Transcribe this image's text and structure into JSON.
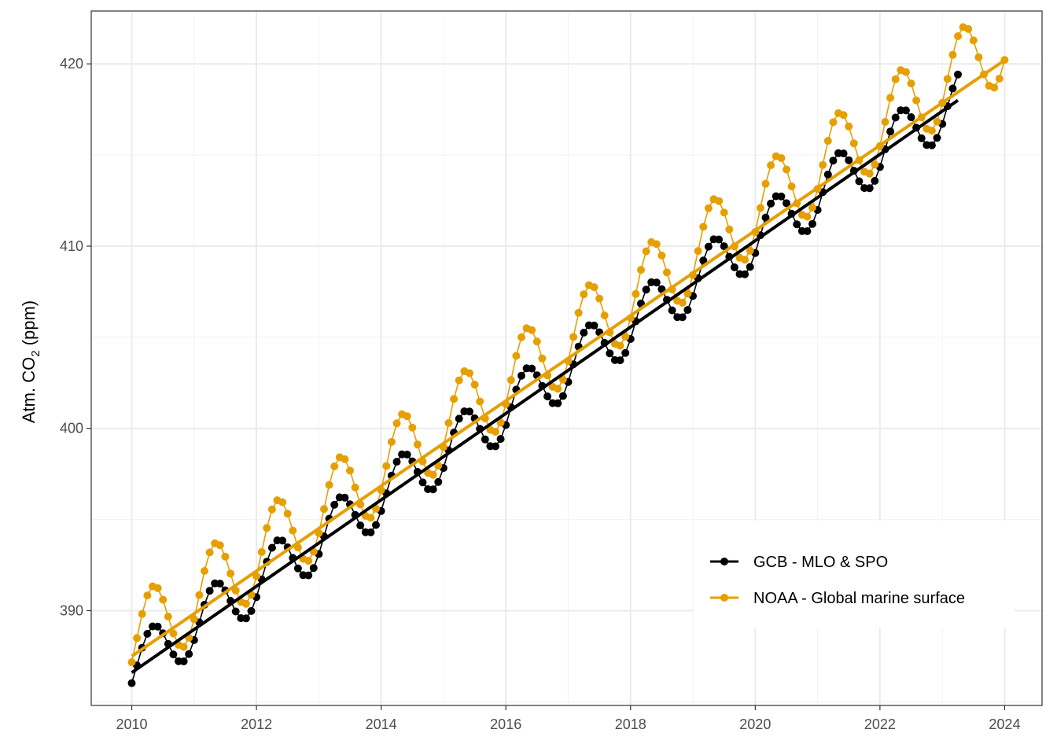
{
  "chart_data": {
    "type": "line",
    "title": "",
    "xlabel": "",
    "ylabel": "Atm. CO",
    "ylabel_subscript": "2",
    "ylabel_unit": " (ppm)",
    "xlim": [
      2009.35,
      2024.6
    ],
    "ylim": [
      384.8,
      422.9
    ],
    "x_ticks": [
      2010,
      2012,
      2014,
      2016,
      2018,
      2020,
      2022,
      2024
    ],
    "x_tick_labels": [
      "2010",
      "2012",
      "2014",
      "2016",
      "2018",
      "2020",
      "2022",
      "2024"
    ],
    "y_ticks": [
      390,
      400,
      410,
      420
    ],
    "y_tick_labels": [
      "390",
      "400",
      "410",
      "420"
    ],
    "grid": true,
    "legend_position": "right",
    "series": [
      {
        "name": "GCB - MLO & SPO",
        "color": "#000000",
        "start_year": 2010.0,
        "end_year": 2023.25,
        "trend_start": 386.8,
        "trend_slope": 2.36,
        "seasonal_amplitude": 1.55,
        "peak_month": 5,
        "fit_line": {
          "x": [
            2010.0,
            2023.25
          ],
          "y": [
            386.6,
            418.0
          ]
        }
      },
      {
        "name": "NOAA - Global marine surface",
        "color": "#E69F00",
        "start_year": 2010.0,
        "end_year": 2024.0,
        "trend_start": 388.3,
        "trend_slope": 2.36,
        "seasonal_amplitude": 2.25,
        "peak_month": 5,
        "fit_line": {
          "x": [
            2010.0,
            2024.0
          ],
          "y": [
            387.5,
            420.2
          ]
        }
      }
    ]
  }
}
